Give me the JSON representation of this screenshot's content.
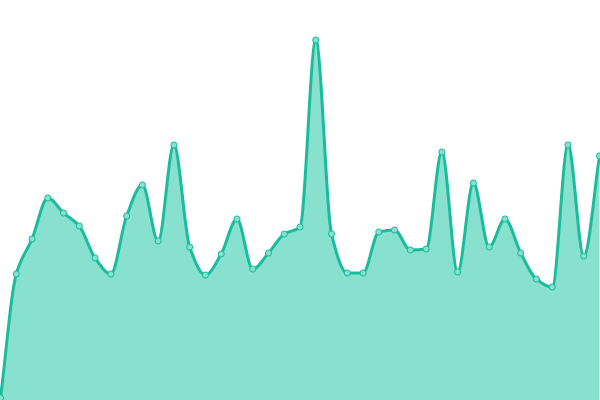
{
  "chart_data": {
    "type": "area",
    "title": "",
    "xlabel": "",
    "ylabel": "",
    "axes_visible": false,
    "grid": false,
    "legend": "none",
    "smooth": true,
    "x": [
      0,
      1,
      2,
      3,
      4,
      5,
      6,
      7,
      8,
      9,
      10,
      11,
      12,
      13,
      14,
      15,
      16,
      17,
      18,
      19,
      20,
      21,
      22,
      23,
      24,
      25,
      26,
      27,
      28,
      29,
      30,
      31,
      32,
      33,
      34,
      35,
      36,
      37,
      38
    ],
    "ylim": [
      0,
      400
    ],
    "series": [
      {
        "values": [
          2,
          126,
          161,
          202,
          187,
          174,
          142,
          126,
          184,
          215,
          159,
          255,
          153,
          125,
          146,
          181,
          131,
          147,
          166,
          173,
          360,
          166,
          127,
          127,
          168,
          170,
          150,
          151,
          248,
          128,
          217,
          153,
          181,
          147,
          121,
          113,
          255,
          144,
          244
        ],
        "line_color": "#1abc9c",
        "fill_color": "#88e0cf",
        "marker_fill": "#88e0cf",
        "marker_stroke": "#1abc9c"
      }
    ]
  }
}
